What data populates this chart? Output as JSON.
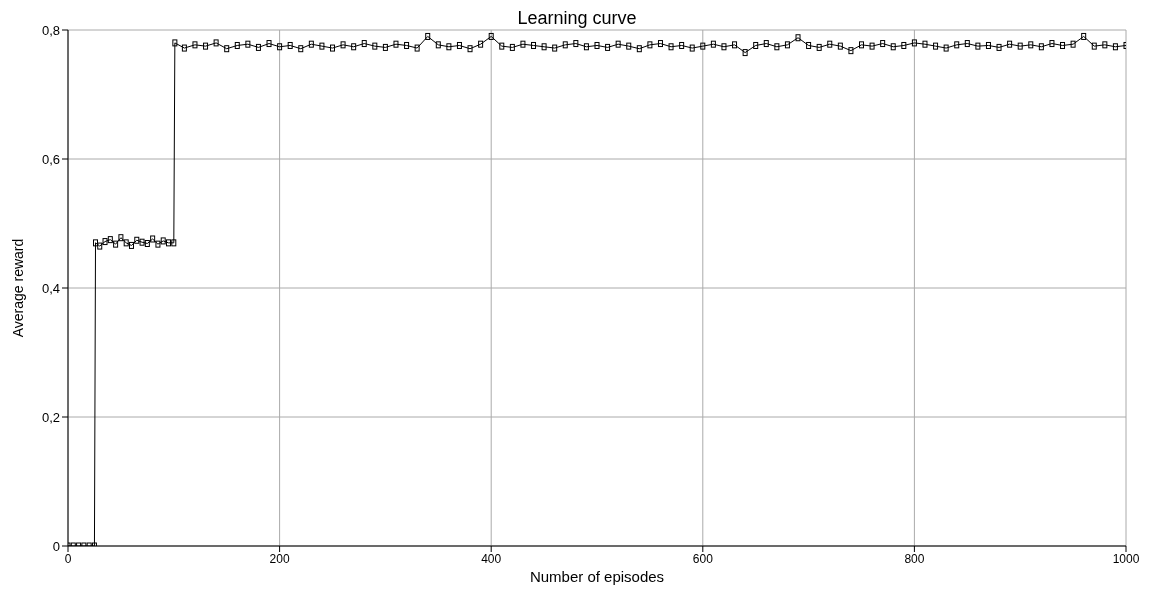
{
  "chart_data": {
    "type": "line",
    "title": "Learning curve",
    "xlabel": "Number of episodes",
    "ylabel": "Average reward",
    "x": [
      0,
      5,
      10,
      15,
      20,
      25,
      26,
      30,
      35,
      40,
      45,
      50,
      55,
      60,
      65,
      70,
      75,
      80,
      85,
      90,
      95,
      100,
      101,
      110,
      120,
      130,
      140,
      150,
      160,
      170,
      180,
      190,
      200,
      210,
      220,
      230,
      240,
      250,
      260,
      270,
      280,
      290,
      300,
      310,
      320,
      330,
      340,
      350,
      360,
      370,
      380,
      390,
      400,
      410,
      420,
      430,
      440,
      450,
      460,
      470,
      480,
      490,
      500,
      510,
      520,
      530,
      540,
      550,
      560,
      570,
      580,
      590,
      600,
      610,
      620,
      630,
      640,
      650,
      660,
      670,
      680,
      690,
      700,
      710,
      720,
      730,
      740,
      750,
      760,
      770,
      780,
      790,
      800,
      810,
      820,
      830,
      840,
      850,
      860,
      870,
      880,
      890,
      900,
      910,
      920,
      930,
      940,
      950,
      960,
      970,
      980,
      990,
      1000
    ],
    "series": [
      {
        "color": "#000000",
        "values": [
          0,
          0,
          0,
          0,
          0,
          0,
          0.47,
          0.465,
          0.472,
          0.475,
          0.468,
          0.478,
          0.47,
          0.466,
          0.474,
          0.471,
          0.469,
          0.476,
          0.468,
          0.473,
          0.47,
          0.47,
          0.78,
          0.772,
          0.777,
          0.775,
          0.78,
          0.771,
          0.776,
          0.778,
          0.773,
          0.779,
          0.774,
          0.776,
          0.771,
          0.778,
          0.775,
          0.772,
          0.777,
          0.774,
          0.779,
          0.775,
          0.773,
          0.778,
          0.776,
          0.772,
          0.79,
          0.777,
          0.774,
          0.776,
          0.771,
          0.778,
          0.79,
          0.775,
          0.773,
          0.778,
          0.776,
          0.774,
          0.772,
          0.777,
          0.779,
          0.774,
          0.776,
          0.773,
          0.778,
          0.775,
          0.771,
          0.777,
          0.779,
          0.774,
          0.776,
          0.772,
          0.775,
          0.778,
          0.774,
          0.777,
          0.765,
          0.776,
          0.779,
          0.774,
          0.777,
          0.788,
          0.776,
          0.773,
          0.778,
          0.775,
          0.768,
          0.777,
          0.775,
          0.779,
          0.774,
          0.776,
          0.78,
          0.778,
          0.775,
          0.772,
          0.777,
          0.779,
          0.775,
          0.776,
          0.773,
          0.778,
          0.775,
          0.777,
          0.774,
          0.779,
          0.776,
          0.778,
          0.79,
          0.775,
          0.777,
          0.774,
          0.776
        ]
      }
    ],
    "xlim": [
      0,
      1000
    ],
    "xticks": [
      0,
      200,
      400,
      600,
      800,
      1000
    ],
    "ylim": [
      0,
      0.8
    ],
    "yticks": [
      0,
      {
        "value": 0.2,
        "label": "0,2"
      },
      {
        "value": 0.4,
        "label": "0,4"
      },
      {
        "value": 0.6,
        "label": "0,6"
      },
      {
        "value": 0.8,
        "label": "0,8"
      }
    ],
    "grid": true,
    "marker": "square",
    "line_style": "solid",
    "legend": false
  }
}
